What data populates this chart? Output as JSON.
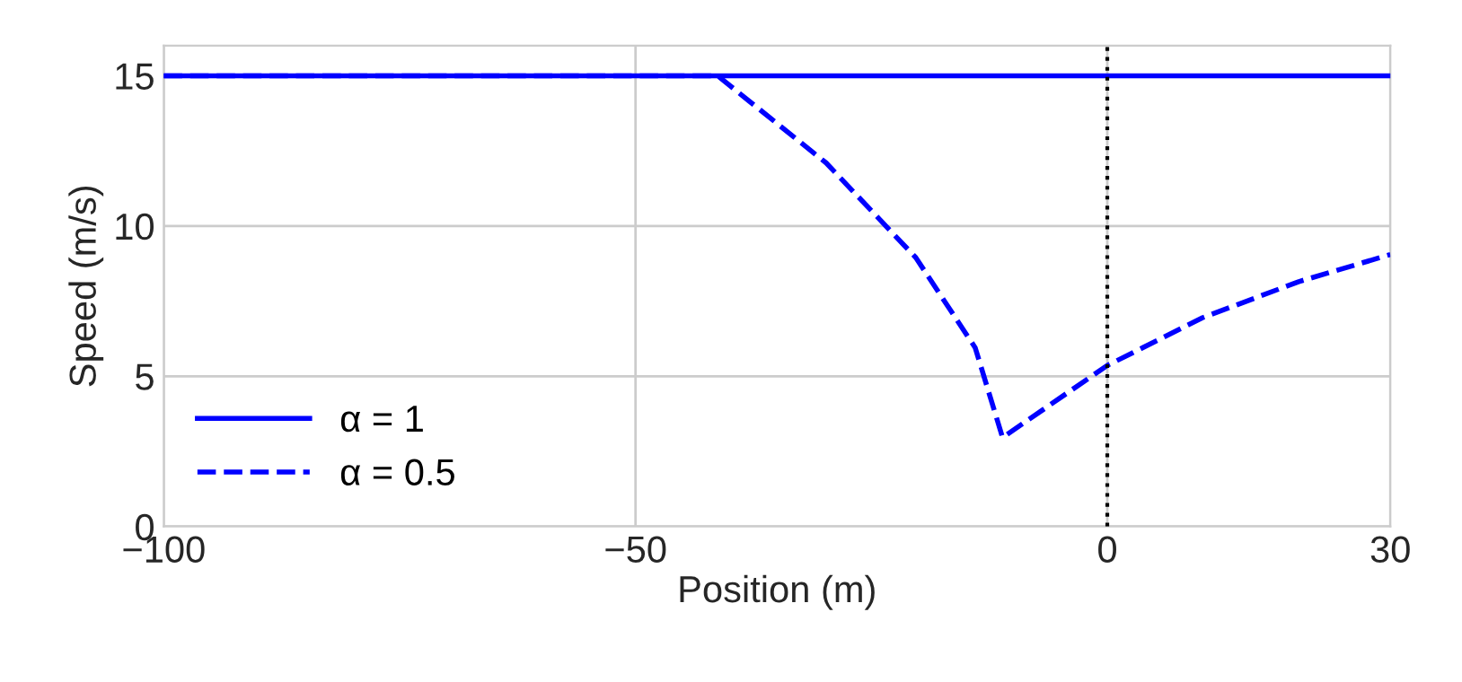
{
  "chart_data": {
    "type": "line",
    "xlabel": "Position (m)",
    "ylabel": "Speed (m/s)",
    "xlim": [
      -100,
      30
    ],
    "xticks": [
      {
        "value": -100,
        "label": "−100"
      },
      {
        "value": -50,
        "label": "−50"
      },
      0,
      30
    ],
    "ylim": [
      0,
      16
    ],
    "yticks": [
      0,
      5,
      10,
      15
    ],
    "grid": true,
    "legend": "bottom left",
    "ref_lines": [
      {
        "axis": "x",
        "value": 0,
        "color": "#000000",
        "line_style": "dotted"
      }
    ],
    "series": [
      {
        "name": "α = 1",
        "color": "#0000ff",
        "line_style": "solid",
        "x": [
          -100,
          30
        ],
        "values": [
          15,
          15
        ]
      },
      {
        "name": "α = 0.5",
        "color": "#0000ff",
        "line_style": "dashed",
        "x": [
          -100,
          -41.3,
          -29.8,
          -20.3,
          -14.0,
          -11.1,
          0,
          10.1,
          20.3,
          30
        ],
        "values": [
          15,
          15,
          12.1,
          8.95,
          5.95,
          2.96,
          5.36,
          6.95,
          8.15,
          9.05
        ]
      }
    ]
  }
}
